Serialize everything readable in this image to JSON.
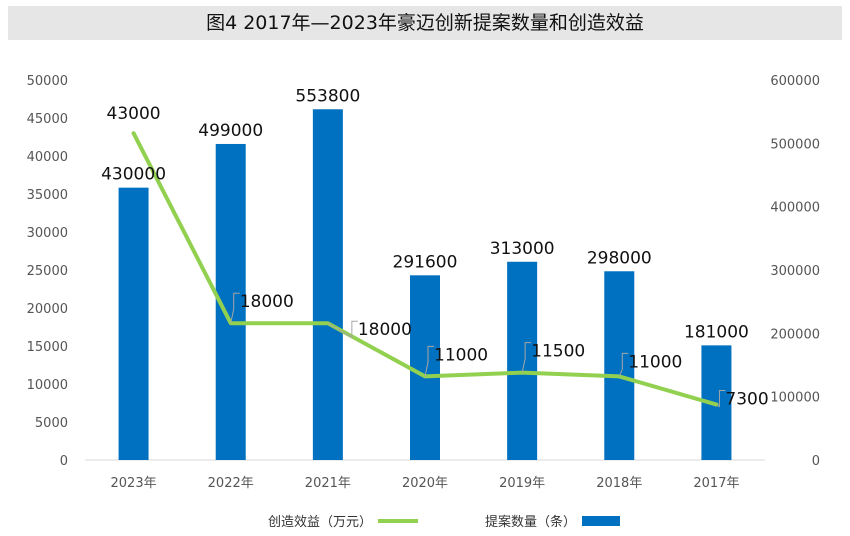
{
  "title": "图4 2017年—2023年豪迈创新提案数量和创造效益",
  "chart_data": {
    "type": "bar+line",
    "categories": [
      "2023年",
      "2022年",
      "2021年",
      "2020年",
      "2019年",
      "2018年",
      "2017年"
    ],
    "series": [
      {
        "name": "提案数量（条）",
        "type": "bar",
        "axis": "right",
        "values": [
          430000,
          499000,
          553800,
          291600,
          313000,
          298000,
          181000
        ],
        "color": "#0070c0"
      },
      {
        "name": "创造效益（万元）",
        "type": "line",
        "axis": "left",
        "values": [
          43000,
          18000,
          18000,
          11000,
          11500,
          11000,
          7300
        ],
        "color": "#92d050"
      }
    ],
    "left_axis": {
      "ylim": [
        0,
        50000
      ],
      "ticks": [
        "50000",
        "45000",
        "40000",
        "35000",
        "30000",
        "25000",
        "20000",
        "15000",
        "10000",
        "5000",
        "0"
      ]
    },
    "right_axis": {
      "ylim": [
        0,
        600000
      ],
      "ticks": [
        "600000",
        "500000",
        "400000",
        "300000",
        "200000",
        "100000",
        "0"
      ]
    },
    "bar_labels": [
      "430000",
      "499000",
      "553800",
      "291600",
      "313000",
      "298000",
      "181000"
    ],
    "line_labels": [
      "43000",
      "18000",
      "18000",
      "11000",
      "11500",
      "11000",
      "7300"
    ],
    "legend": [
      "创造效益（万元）",
      "提案数量（条）"
    ],
    "legend_position": "bottom",
    "grid": false
  }
}
